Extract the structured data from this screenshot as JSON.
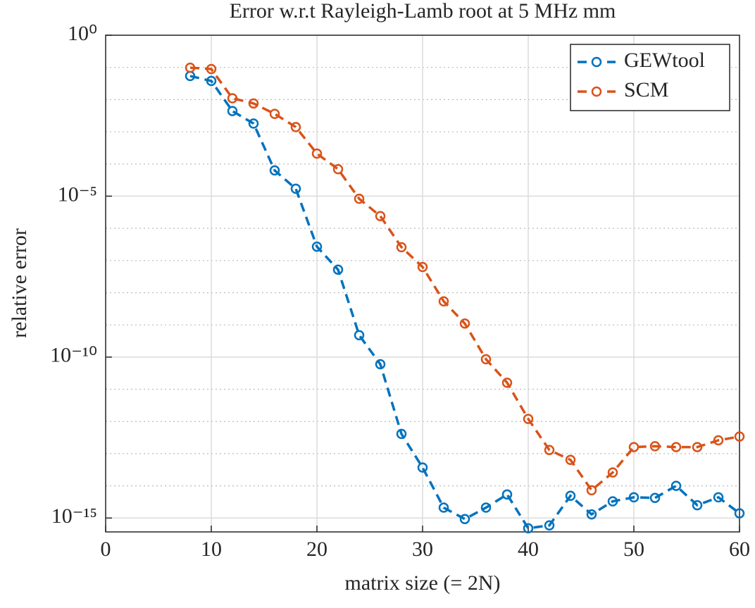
{
  "chart_data": {
    "type": "line",
    "title": "Error w.r.t Rayleigh-Lamb root at 5 MHz mm",
    "xlabel": "matrix size (= 2N)",
    "ylabel": "relative error",
    "x": [
      8,
      10,
      12,
      14,
      16,
      18,
      20,
      22,
      24,
      26,
      28,
      30,
      32,
      34,
      36,
      38,
      40,
      42,
      44,
      46,
      48,
      50,
      52,
      54,
      56,
      58,
      60
    ],
    "series": [
      {
        "name": "GEWtool",
        "color": "#0072bd",
        "values": [
          0.054,
          0.038,
          0.0044,
          0.0018,
          6.3e-05,
          1.7e-05,
          2.7e-07,
          5.2e-08,
          4.8e-10,
          6e-11,
          4.1e-13,
          3.7e-14,
          2.1e-15,
          9.3e-16,
          2.1e-15,
          5.4e-15,
          4.8e-16,
          5.9e-16,
          4.9e-15,
          1.3e-15,
          3.3e-15,
          4.4e-15,
          4.2e-15,
          1e-14,
          2.5e-15,
          4.4e-15,
          1.4e-15
        ]
      },
      {
        "name": "SCM",
        "color": "#d95319",
        "values": [
          0.098,
          0.089,
          0.011,
          0.0076,
          0.0036,
          0.0014,
          0.00021,
          6.9e-05,
          8.3e-06,
          2.4e-06,
          2.6e-07,
          6.3e-08,
          5.4e-09,
          1.1e-09,
          8.6e-11,
          1.6e-11,
          1.2e-12,
          1.3e-13,
          6.4e-14,
          7.3e-15,
          2.6e-14,
          1.6e-13,
          1.7e-13,
          1.6e-13,
          1.6e-13,
          2.6e-13,
          3.4e-13
        ]
      }
    ],
    "xlim": [
      0,
      60
    ],
    "xticks": [
      0,
      10,
      20,
      30,
      40,
      50,
      60
    ],
    "ylim": [
      3.7e-16,
      1
    ],
    "ylog": true,
    "yticks": [
      {
        "value": 1,
        "label": "10⁰"
      },
      {
        "value": 1e-05,
        "label": "10⁻⁵"
      },
      {
        "value": 1e-10,
        "label": "10⁻¹⁰"
      },
      {
        "value": 1e-15,
        "label": "10⁻¹⁵"
      }
    ],
    "yminorticks": [
      0.1,
      0.01,
      0.001,
      0.0001,
      1e-06,
      1e-07,
      1e-08,
      1e-09,
      1e-11,
      1e-12,
      1e-13,
      1e-14
    ],
    "grid": true,
    "legend": "northeast"
  }
}
